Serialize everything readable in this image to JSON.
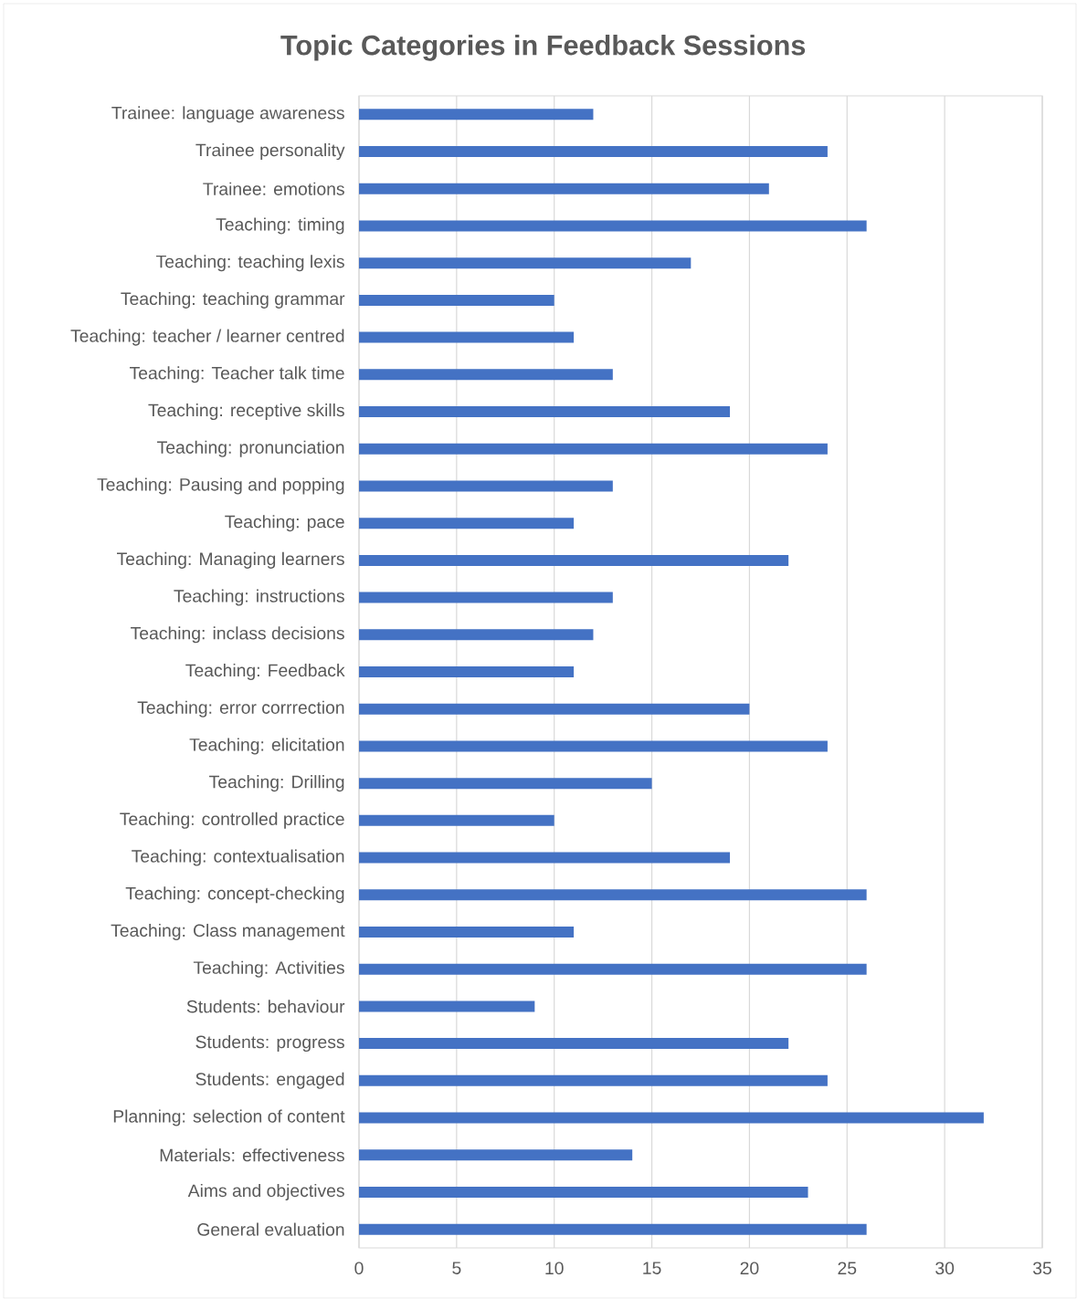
{
  "chart_data": {
    "type": "bar",
    "orientation": "horizontal",
    "title": "Topic Categories in Feedback Sessions",
    "color": "#4472c4",
    "grid": "x",
    "xlim": [
      0,
      35
    ],
    "xticks": [
      0,
      5,
      10,
      15,
      20,
      25,
      30,
      35
    ],
    "categories": [
      "Trainee: language awareness",
      "Trainee personality",
      "Trainee: emotions",
      "Teaching: timing",
      "Teaching: teaching lexis",
      "Teaching: teaching grammar",
      "Teaching: teacher / learner centred",
      "Teaching: Teacher talk time",
      "Teaching: receptive skills",
      "Teaching: pronunciation",
      "Teaching: Pausing and popping",
      "Teaching: pace",
      "Teaching: Managing learners",
      "Teaching: instructions",
      "Teaching: inclass decisions",
      "Teaching: Feedback",
      "Teaching: error corrrection",
      "Teaching: elicitation",
      "Teaching: Drilling",
      "Teaching: controlled practice",
      "Teaching: contextualisation",
      "Teaching: concept-checking",
      "Teaching: Class management",
      "Teaching: Activities",
      "Students: behaviour",
      "Students: progress",
      "Students: engaged",
      "Planning: selection of content",
      "Materials: effectiveness",
      "Aims and objectives",
      "General evaluation"
    ],
    "values": [
      12,
      24,
      21,
      26,
      17,
      10,
      11,
      13,
      19,
      24,
      13,
      11,
      22,
      13,
      12,
      11,
      20,
      24,
      15,
      10,
      19,
      26,
      11,
      26,
      9,
      22,
      24,
      32,
      14,
      23,
      26
    ]
  }
}
